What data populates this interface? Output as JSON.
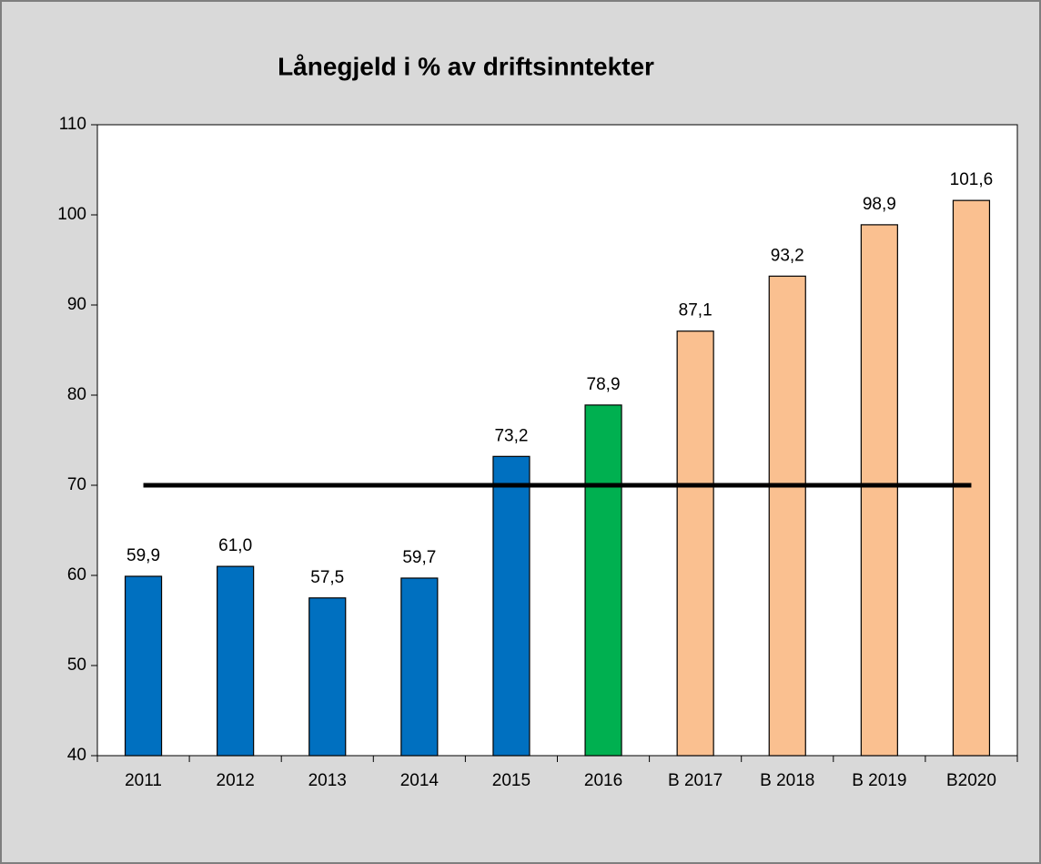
{
  "chart_data": {
    "type": "bar",
    "title": "Lånegjeld i % av driftsinntekter",
    "categories": [
      "2011",
      "2012",
      "2013",
      "2014",
      "2015",
      "2016",
      "B 2017",
      "B 2018",
      "B 2019",
      "B2020"
    ],
    "values": [
      59.9,
      61.0,
      57.5,
      59.7,
      73.2,
      78.9,
      87.1,
      93.2,
      98.9,
      101.6
    ],
    "value_labels": [
      "59,9",
      "61,0",
      "57,5",
      "59,7",
      "73,2",
      "78,9",
      "87,1",
      "93,2",
      "98,9",
      "101,6"
    ],
    "colors": [
      "#0070c0",
      "#0070c0",
      "#0070c0",
      "#0070c0",
      "#0070c0",
      "#00b050",
      "#fac090",
      "#fac090",
      "#fac090",
      "#fac090"
    ],
    "reference_line": {
      "value": 70,
      "color": "#000000"
    },
    "ylim": [
      40,
      110
    ],
    "yticks": [
      40,
      50,
      60,
      70,
      80,
      90,
      100,
      110
    ],
    "grid": false
  }
}
